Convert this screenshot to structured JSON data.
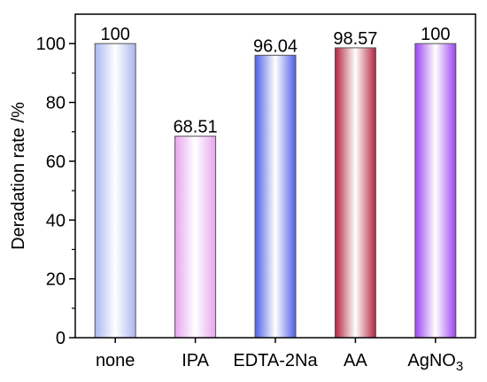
{
  "chart_data": {
    "type": "bar",
    "title": "",
    "xlabel": "",
    "ylabel": "Deradation rate /%",
    "ylim": [
      0,
      110
    ],
    "yticks": [
      0,
      20,
      40,
      60,
      80,
      100
    ],
    "grid": false,
    "legend": "none",
    "categories": [
      "none",
      "IPA",
      "EDTA-2Na",
      "AA",
      "AgNO3"
    ],
    "category_display": [
      {
        "main": "none",
        "sub": ""
      },
      {
        "main": "IPA",
        "sub": ""
      },
      {
        "main": "EDTA-2Na",
        "sub": ""
      },
      {
        "main": "AA",
        "sub": ""
      },
      {
        "main": "AgNO",
        "sub": "3"
      }
    ],
    "values": [
      100,
      68.51,
      96.04,
      98.57,
      100
    ],
    "value_labels": [
      "100",
      "68.51",
      "96.04",
      "98.57",
      "100"
    ],
    "colors": [
      {
        "edge": "#aab6f0",
        "center": "#ffffff",
        "side": "#c3cbf7"
      },
      {
        "edge": "#e7a4ef",
        "center": "#ffffff",
        "side": "#f2cbf5"
      },
      {
        "edge": "#4e5fe6",
        "center": "#ffffff",
        "side": "#7c8aee"
      },
      {
        "edge": "#b3243f",
        "center": "#ffffff",
        "side": "#c9536a"
      },
      {
        "edge": "#9b45f0",
        "center": "#ffffff",
        "side": "#b77bf4"
      }
    ]
  }
}
